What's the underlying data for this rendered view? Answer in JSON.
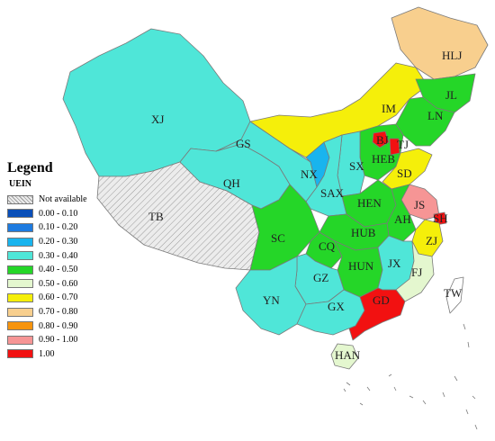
{
  "legend": {
    "title": "Legend",
    "subtitle": "UEIN",
    "items": [
      {
        "label": "Not available",
        "color": "#e6e6e6",
        "hatch": true
      },
      {
        "label": "0.00 - 0.10",
        "color": "#0a4fb8"
      },
      {
        "label": "0.10 - 0.20",
        "color": "#1e7be0"
      },
      {
        "label": "0.20 - 0.30",
        "color": "#19b4ee"
      },
      {
        "label": "0.30 - 0.40",
        "color": "#4fe6d8"
      },
      {
        "label": "0.40 - 0.50",
        "color": "#25d628"
      },
      {
        "label": "0.50 - 0.60",
        "color": "#e4f7cf"
      },
      {
        "label": "0.60 - 0.70",
        "color": "#f5ef0a"
      },
      {
        "label": "0.70 - 0.80",
        "color": "#f8cf8e"
      },
      {
        "label": "0.80 - 0.90",
        "color": "#f7940d"
      },
      {
        "label": "0.90 - 1.00",
        "color": "#f69595"
      },
      {
        "label": "1.00",
        "color": "#f21111"
      }
    ]
  },
  "provinces": [
    {
      "code": "XJ",
      "color": "#4fe6d8"
    },
    {
      "code": "TB",
      "color": "#e6e6e6",
      "hatch": true
    },
    {
      "code": "QH",
      "color": "#4fe6d8"
    },
    {
      "code": "GS",
      "color": "#4fe6d8"
    },
    {
      "code": "IM",
      "color": "#f5ef0a"
    },
    {
      "code": "HLJ",
      "color": "#f8cf8e"
    },
    {
      "code": "JL",
      "color": "#25d628"
    },
    {
      "code": "LN",
      "color": "#25d628"
    },
    {
      "code": "BJ",
      "color": "#f21111"
    },
    {
      "code": "TJ",
      "color": "#f21111"
    },
    {
      "code": "HEB",
      "color": "#25d628"
    },
    {
      "code": "SX",
      "color": "#4fe6d8"
    },
    {
      "code": "NX",
      "color": "#19b4ee"
    },
    {
      "code": "SAX",
      "color": "#4fe6d8"
    },
    {
      "code": "SD",
      "color": "#f5ef0a"
    },
    {
      "code": "HEN",
      "color": "#25d628"
    },
    {
      "code": "JS",
      "color": "#f69595"
    },
    {
      "code": "SH",
      "color": "#f21111"
    },
    {
      "code": "AH",
      "color": "#25d628"
    },
    {
      "code": "ZJ",
      "color": "#f5ef0a"
    },
    {
      "code": "HUB",
      "color": "#25d628"
    },
    {
      "code": "SC",
      "color": "#25d628"
    },
    {
      "code": "CQ",
      "color": "#25d628"
    },
    {
      "code": "HUN",
      "color": "#25d628"
    },
    {
      "code": "JX",
      "color": "#4fe6d8"
    },
    {
      "code": "FJ",
      "color": "#e4f7cf"
    },
    {
      "code": "TW",
      "color": "#ffffff"
    },
    {
      "code": "GZ",
      "color": "#4fe6d8"
    },
    {
      "code": "YN",
      "color": "#4fe6d8"
    },
    {
      "code": "GX",
      "color": "#4fe6d8"
    },
    {
      "code": "GD",
      "color": "#f21111"
    },
    {
      "code": "HAN",
      "color": "#e4f7cf"
    }
  ]
}
